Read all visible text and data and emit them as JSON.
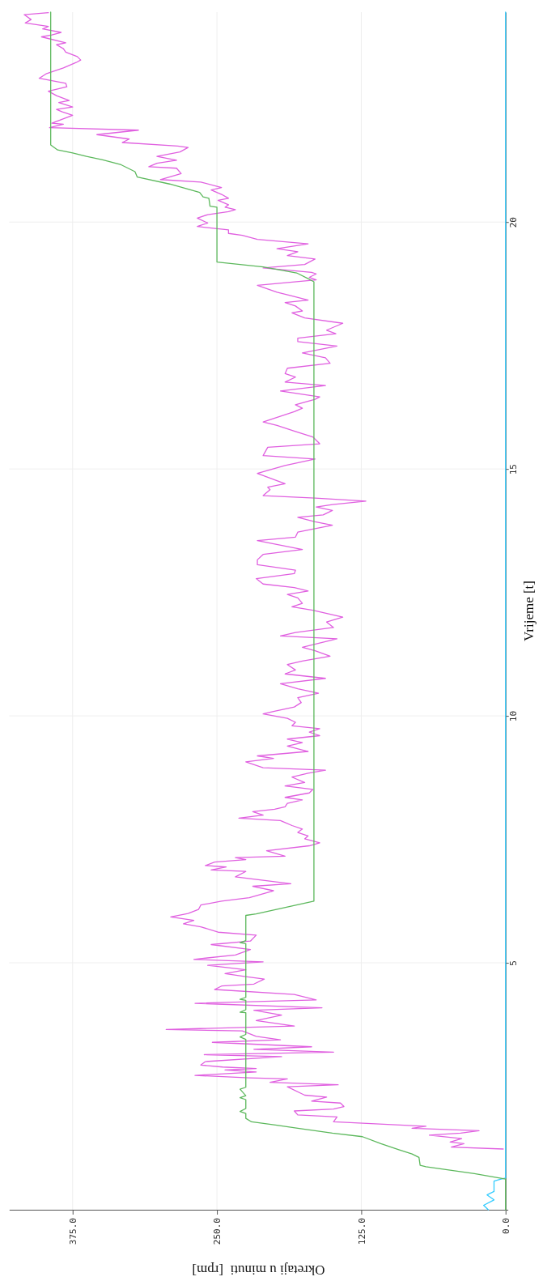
{
  "chart_data": {
    "type": "line",
    "ylabel": "Vrijeme [t]",
    "xlabel": "Okretaji u minuti  [rpm]",
    "ylim": [
      0,
      24.25
    ],
    "xlim": [
      430,
      -2
    ],
    "yticks": [
      5,
      10,
      15,
      20
    ],
    "xticks": [
      {
        "value": 0,
        "label": "0.0"
      },
      {
        "value": 125,
        "label": "125.0"
      },
      {
        "value": 250,
        "label": "250.0"
      },
      {
        "value": 375,
        "label": "375.0"
      }
    ],
    "grid": true,
    "line_style": "solid",
    "series": [
      {
        "color": "#33ccff",
        "values": [
          0,
          0.09,
          0.2,
          0.3,
          0.37,
          0.58,
          0.62,
          0.64,
          24.25
        ],
        "x": [
          15,
          19,
          10,
          16,
          10,
          10,
          4,
          0,
          0
        ]
      },
      {
        "color": "#e060e0",
        "values": [
          1.23,
          1.27,
          1.34,
          1.37,
          1.44,
          1.51,
          1.55,
          1.6,
          1.65,
          1.69,
          1.78,
          1.88,
          1.92,
          2.0,
          2.04,
          2.09,
          2.16,
          2.2,
          2.28,
          2.32,
          2.49,
          2.53,
          2.58,
          2.65,
          2.67,
          2.72,
          2.79,
          2.83,
          2.86,
          2.89,
          2.93,
          3.0,
          3.1,
          3.14,
          3.19,
          3.25,
          3.3,
          3.39,
          3.44,
          3.51,
          3.62,
          3.65,
          3.72,
          3.83,
          3.94,
          4.04,
          4.09,
          4.18,
          4.25,
          4.36,
          4.46,
          4.53,
          4.57,
          4.67,
          4.72,
          4.78,
          4.86,
          4.95,
          5.02,
          5.07,
          5.16,
          5.27,
          5.37,
          5.44,
          5.56,
          5.62,
          5.73,
          5.79,
          5.86,
          5.93,
          6.0,
          6.08,
          6.17,
          6.25,
          6.32,
          6.46,
          6.55,
          6.6,
          6.74,
          6.85,
          6.88,
          6.94,
          6.97,
          7.04,
          7.09,
          7.13,
          7.16,
          7.27,
          7.37,
          7.43,
          7.51,
          7.57,
          7.64,
          7.71,
          7.78,
          7.88,
          7.93,
          7.99,
          8.06,
          8.11,
          8.16,
          8.23,
          8.3,
          8.35,
          8.44,
          8.51,
          8.58,
          8.65,
          8.76,
          8.84,
          8.9,
          8.95,
          9.07,
          9.14,
          9.19,
          9.28,
          9.39,
          9.46,
          9.53,
          9.6,
          9.67,
          9.74,
          9.8,
          9.87,
          9.95,
          10.04,
          10.09,
          10.18,
          10.27,
          10.37,
          10.46,
          10.55,
          10.65,
          10.76,
          10.85,
          10.93,
          11.04,
          11.11,
          11.21,
          11.32,
          11.39,
          11.56,
          11.62,
          11.69,
          11.79,
          11.9,
          12.0,
          12.14,
          12.21,
          12.28,
          12.39,
          12.46,
          12.53,
          12.6,
          12.67,
          12.78,
          12.88,
          12.95,
          13.06,
          13.16,
          13.27,
          13.37,
          13.55,
          13.62,
          13.72,
          13.86,
          13.93,
          14.02,
          14.07,
          14.16,
          14.23,
          14.28,
          14.35,
          14.41,
          14.46,
          14.58,
          14.63,
          14.7,
          14.91,
          15.07,
          15.2,
          15.27,
          15.44,
          15.51,
          15.65,
          15.76,
          15.88,
          15.95,
          16.02,
          16.16,
          16.23,
          16.3,
          16.41,
          16.46,
          16.58,
          16.69,
          16.76,
          16.86,
          16.93,
          17.04,
          17.14,
          17.25,
          17.35,
          17.49,
          17.58,
          17.65,
          17.74,
          17.81,
          17.95,
          18.06,
          18.16,
          18.2,
          18.3,
          18.37,
          18.42,
          18.51,
          18.58,
          18.72,
          18.83,
          18.88,
          18.95,
          18.98,
          19.07,
          19.14,
          19.25,
          19.32,
          19.4,
          19.46,
          19.56,
          19.65,
          19.73,
          19.77,
          19.84,
          19.91,
          19.98,
          20.08,
          20.15,
          20.21,
          20.25,
          20.3,
          20.35,
          20.44,
          20.48,
          20.56,
          20.65,
          20.7,
          20.81,
          20.86,
          20.98,
          21.09,
          21.12,
          21.19,
          21.25,
          21.33,
          21.42,
          21.51,
          21.54,
          21.61,
          21.68,
          21.77,
          21.86,
          21.91,
          21.98,
          22.0,
          22.16,
          22.23,
          22.28,
          22.33,
          22.42,
          22.46,
          22.56,
          22.65,
          22.74,
          22.81,
          22.91,
          23.0,
          23.12,
          23.23,
          23.28,
          23.35,
          23.44,
          23.51,
          23.59,
          23.63,
          23.75,
          23.79,
          23.84,
          23.91,
          23.96,
          24.03,
          24.1,
          24.2,
          24.24
        ],
        "x": [
          2,
          47,
          36,
          48,
          38,
          66,
          39,
          23,
          81,
          69,
          149,
          146,
          180,
          183,
          149,
          140,
          143,
          168,
          155,
          174,
          189,
          145,
          204,
          189,
          222,
          269,
          216,
          243,
          216,
          245,
          264,
          260,
          194,
          261,
          149,
          218,
          168,
          254,
          195,
          216,
          228,
          294,
          183,
          216,
          194,
          218,
          159,
          269,
          164,
          183,
          252,
          246,
          218,
          209,
          225,
          243,
          225,
          258,
          210,
          270,
          234,
          221,
          255,
          221,
          216,
          249,
          264,
          279,
          270,
          290,
          275,
          266,
          264,
          246,
          222,
          201,
          219,
          186,
          234,
          225,
          255,
          242,
          260,
          252,
          225,
          234,
          191,
          207,
          170,
          161,
          174,
          171,
          180,
          176,
          185,
          195,
          231,
          210,
          219,
          200,
          191,
          189,
          176,
          191,
          170,
          167,
          191,
          174,
          185,
          171,
          156,
          210,
          225,
          201,
          215,
          171,
          189,
          176,
          189,
          161,
          170,
          161,
          185,
          182,
          189,
          210,
          201,
          183,
          177,
          180,
          162,
          180,
          195,
          156,
          191,
          182,
          189,
          176,
          152,
          165,
          176,
          146,
          195,
          182,
          149,
          155,
          141,
          167,
          185,
          176,
          180,
          189,
          171,
          183,
          210,
          216,
          183,
          182,
          215,
          215,
          210,
          176,
          215,
          182,
          180,
          150,
          165,
          180,
          158,
          150,
          164,
          150,
          121,
          165,
          210,
          204,
          206,
          191,
          215,
          191,
          165,
          210,
          206,
          161,
          167,
          182,
          198,
          210,
          201,
          183,
          176,
          182,
          165,
          161,
          195,
          156,
          191,
          182,
          191,
          189,
          152,
          156,
          176,
          146,
          180,
          180,
          147,
          155,
          141,
          174,
          185,
          176,
          182,
          191,
          171,
          186,
          198,
          215,
          164,
          170,
          164,
          168,
          210,
          174,
          165,
          189,
          180,
          198,
          171,
          215,
          228,
          240,
          240,
          267,
          258,
          267,
          258,
          240,
          234,
          243,
          240,
          249,
          240,
          246,
          255,
          246,
          264,
          299,
          281,
          285,
          309,
          302,
          285,
          302,
          282,
          275,
          284,
          332,
          326,
          354,
          318,
          395,
          383,
          393,
          375,
          384,
          389,
          375,
          387,
          378,
          389,
          396,
          380,
          381,
          404,
          398,
          383,
          372,
          368,
          371,
          381,
          383,
          389,
          381,
          402,
          393,
          385,
          401,
          396,
          416,
          411,
          417,
          396
        ]
      },
      {
        "color": "#5cb85c",
        "values": [
          0,
          0.62,
          0.73,
          0.87,
          0.9,
          1.06,
          1.13,
          1.22,
          1.34,
          1.48,
          1.55,
          1.65,
          1.71,
          1.78,
          1.85,
          1.95,
          1.99,
          2.05,
          2.23,
          2.27,
          2.31,
          2.44,
          2.48,
          3.45,
          3.5,
          3.55,
          3.99,
          4.0,
          4.05,
          4.24,
          4.26,
          4.3,
          5.39,
          5.41,
          5.45,
          5.96,
          5.99,
          6.25,
          18.79,
          18.84,
          18.97,
          19.09,
          19.19,
          20.3,
          20.32,
          20.48,
          20.51,
          20.6,
          20.77,
          20.91,
          21.02,
          21.16,
          21.26,
          21.33,
          21.4,
          21.46,
          21.56,
          24.25
        ],
        "x": [
          0,
          0,
          27,
          69,
          74,
          75,
          81,
          93,
          108,
          124,
          150,
          180,
          198,
          220,
          225,
          225,
          230,
          225,
          225,
          230,
          225,
          230,
          225,
          225,
          230,
          225,
          225,
          230,
          225,
          225,
          230,
          225,
          225,
          230,
          225,
          225,
          216,
          166,
          166,
          170,
          181,
          210,
          250,
          250,
          256,
          257,
          262,
          265,
          291,
          319,
          321,
          333,
          349,
          363,
          375,
          388,
          394,
          394
        ]
      }
    ]
  }
}
